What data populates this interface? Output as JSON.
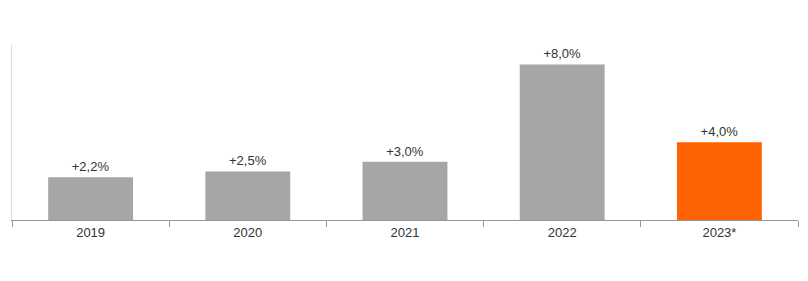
{
  "chart_data": {
    "type": "bar",
    "categories": [
      "2019",
      "2020",
      "2021",
      "2022",
      "2023*"
    ],
    "values": [
      2.2,
      2.5,
      3.0,
      8.0,
      4.0
    ],
    "value_labels": [
      "+2,2%",
      "+2,5%",
      "+3,0%",
      "+8,0%",
      "+4,0%"
    ],
    "colors": [
      "#a6a6a6",
      "#a6a6a6",
      "#a6a6a6",
      "#a6a6a6",
      "#ff6200"
    ],
    "ylim": [
      0,
      9
    ],
    "grid": false,
    "data_labels": true,
    "tick_labels": "x"
  }
}
